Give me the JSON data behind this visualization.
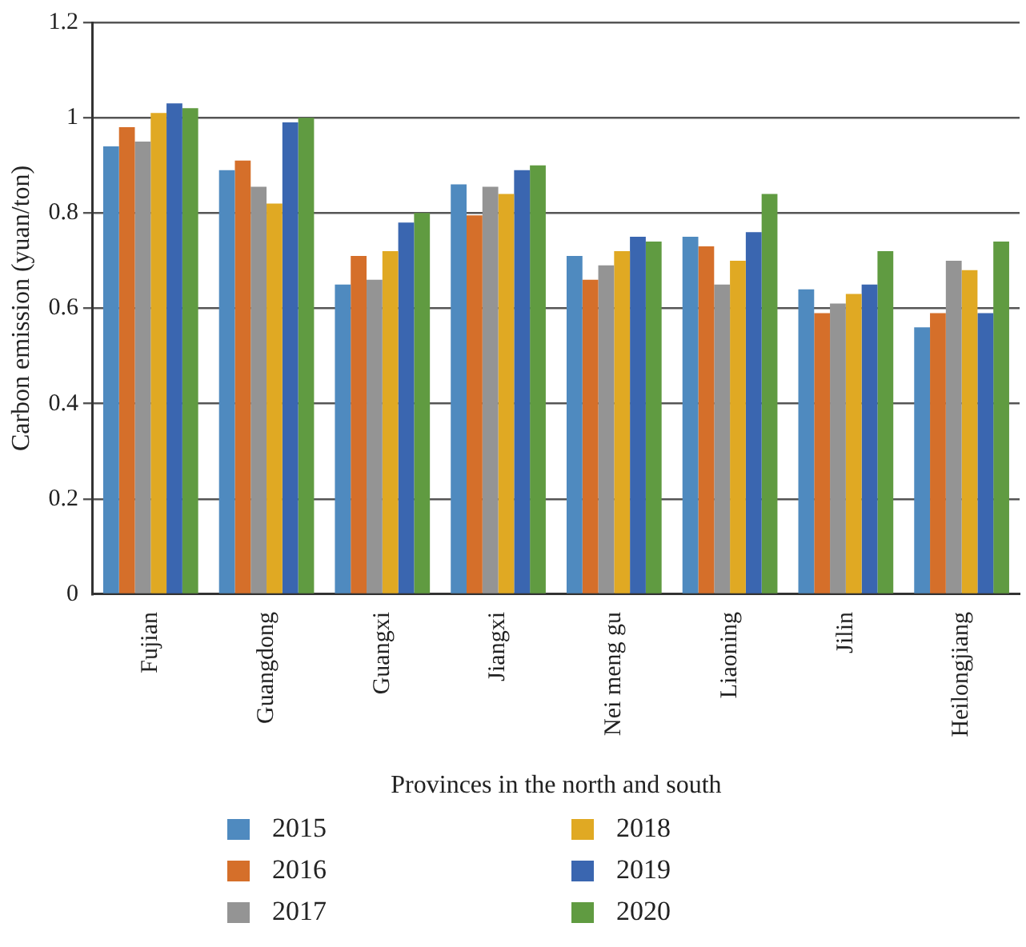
{
  "chart_data": {
    "type": "bar",
    "xlabel": "Provinces in the north and south",
    "ylabel": "Carbon emission (yuan/ton)",
    "categories": [
      "Fujian",
      "Guangdong",
      "Guangxi",
      "Jiangxi",
      "Nei meng gu",
      "Liaoning",
      "Jilin",
      "Heilongjiang"
    ],
    "series": [
      {
        "name": "2015",
        "color": "#4f8abf",
        "values": [
          0.94,
          0.89,
          0.65,
          0.86,
          0.71,
          0.75,
          0.64,
          0.56
        ]
      },
      {
        "name": "2016",
        "color": "#d56f2a",
        "values": [
          0.98,
          0.91,
          0.71,
          0.795,
          0.66,
          0.73,
          0.59,
          0.59
        ]
      },
      {
        "name": "2017",
        "color": "#949494",
        "values": [
          0.95,
          0.855,
          0.66,
          0.855,
          0.69,
          0.65,
          0.61,
          0.7
        ]
      },
      {
        "name": "2018",
        "color": "#e0a923",
        "values": [
          1.01,
          0.82,
          0.72,
          0.84,
          0.72,
          0.7,
          0.63,
          0.68
        ]
      },
      {
        "name": "2019",
        "color": "#3a66b0",
        "values": [
          1.03,
          0.99,
          0.78,
          0.89,
          0.75,
          0.76,
          0.65,
          0.59
        ]
      },
      {
        "name": "2020",
        "color": "#609b41",
        "values": [
          1.02,
          1.0,
          0.8,
          0.9,
          0.74,
          0.84,
          0.72,
          0.74
        ]
      }
    ],
    "ylim": [
      0,
      1.2
    ],
    "yticks": [
      0,
      0.2,
      0.4,
      0.6,
      0.8,
      1,
      1.2
    ],
    "grid": "y",
    "legend": "bottom"
  }
}
